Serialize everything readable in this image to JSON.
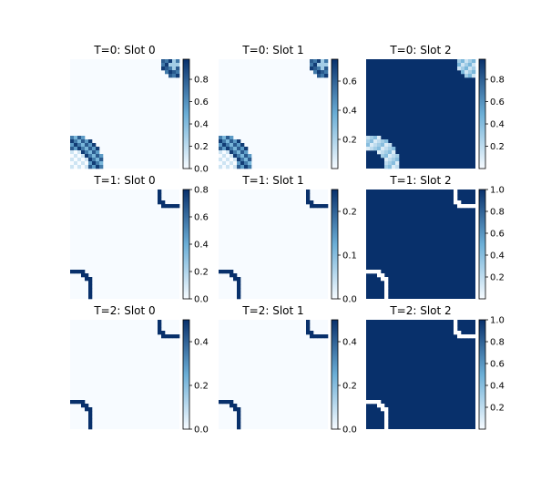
{
  "figure": {
    "background": "#ffffff"
  },
  "colormap": {
    "name": "Blues",
    "low": "#f7fbff",
    "mid": "#6baed6",
    "high": "#08306b"
  },
  "chart_data": [
    {
      "type": "heatmap",
      "title": "T=0: Slot 0",
      "colorbar_range": [
        0,
        0.98
      ],
      "colorbar_ticks": [
        "0.0",
        "0.2",
        "0.4",
        "0.6",
        "0.8"
      ],
      "background_value": 0.0,
      "fill_value": null,
      "corner_top_right": "blob",
      "corner_bottom_left": "blob"
    },
    {
      "type": "heatmap",
      "title": "T=0: Slot 1",
      "colorbar_range": [
        0,
        0.75
      ],
      "colorbar_ticks": [
        "0.2",
        "0.4",
        "0.6"
      ],
      "background_value": 0.0,
      "fill_value": null,
      "corner_top_right": "blob",
      "corner_bottom_left": "blob"
    },
    {
      "type": "heatmap",
      "title": "T=0: Slot 2",
      "colorbar_range": [
        0,
        0.98
      ],
      "colorbar_ticks": [
        "0.2",
        "0.4",
        "0.6",
        "0.8"
      ],
      "background_value": 0.98,
      "fill_value": null,
      "corner_top_right": "blob-light",
      "corner_bottom_left": "blob-light"
    },
    {
      "type": "heatmap",
      "title": "T=1: Slot 0",
      "colorbar_range": [
        0,
        0.8
      ],
      "colorbar_ticks": [
        "0.0",
        "0.2",
        "0.4",
        "0.6",
        "0.8"
      ],
      "background_value": 0.0,
      "fill_value": null,
      "corner_top_right": "curve",
      "corner_bottom_left": "curve"
    },
    {
      "type": "heatmap",
      "title": "T=1: Slot 1",
      "colorbar_range": [
        0,
        0.25
      ],
      "colorbar_ticks": [
        "0.0",
        "0.1",
        "0.2"
      ],
      "background_value": 0.0,
      "fill_value": null,
      "corner_top_right": "curve",
      "corner_bottom_left": "curve"
    },
    {
      "type": "heatmap",
      "title": "T=1: Slot 2",
      "colorbar_range": [
        0,
        1.0
      ],
      "colorbar_ticks": [
        "0.2",
        "0.4",
        "0.6",
        "0.8",
        "1.0"
      ],
      "background_value": 1.0,
      "fill_value": null,
      "corner_top_right": "curve-white",
      "corner_bottom_left": "curve-white"
    },
    {
      "type": "heatmap",
      "title": "T=2: Slot 0",
      "colorbar_range": [
        0,
        0.5
      ],
      "colorbar_ticks": [
        "0.0",
        "0.2",
        "0.4"
      ],
      "background_value": 0.0,
      "fill_value": null,
      "corner_top_right": "curve",
      "corner_bottom_left": "curve"
    },
    {
      "type": "heatmap",
      "title": "T=2: Slot 1",
      "colorbar_range": [
        0,
        0.5
      ],
      "colorbar_ticks": [
        "0.0",
        "0.2",
        "0.4"
      ],
      "background_value": 0.0,
      "fill_value": null,
      "corner_top_right": "curve",
      "corner_bottom_left": "curve"
    },
    {
      "type": "heatmap",
      "title": "T=2: Slot 2",
      "colorbar_range": [
        0,
        1.0
      ],
      "colorbar_ticks": [
        "0.2",
        "0.4",
        "0.6",
        "0.8",
        "1.0"
      ],
      "background_value": 1.0,
      "fill_value": null,
      "corner_top_right": "curve-white",
      "corner_bottom_left": "curve-white"
    }
  ]
}
